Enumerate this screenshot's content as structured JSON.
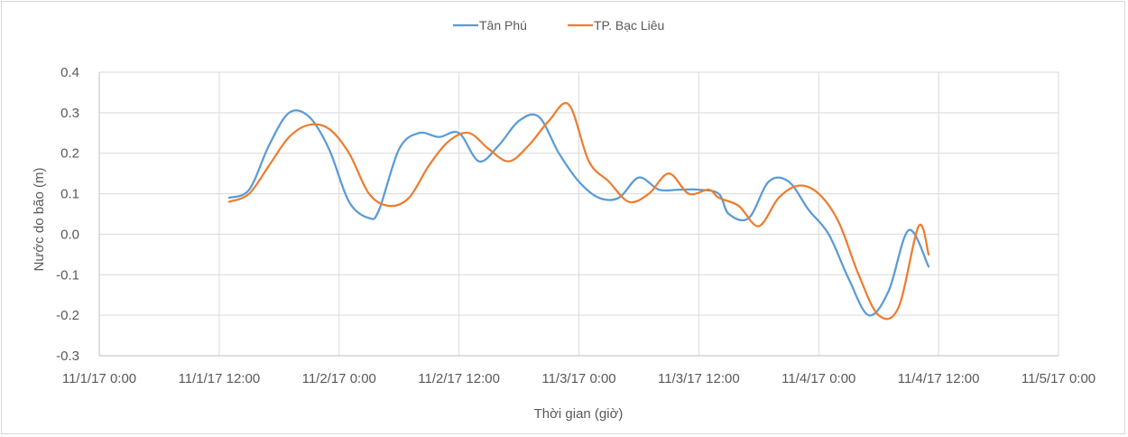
{
  "chart_data": {
    "type": "line",
    "title": "",
    "xlabel": "Thời gian (giờ)",
    "ylabel": "Nước do bão (m)",
    "x_unit": "datetime",
    "xlim": [
      "2017-11-01 00:00",
      "2017-11-05 00:00"
    ],
    "ylim": [
      -0.3,
      0.4
    ],
    "x_tick_labels": [
      "11/1/17 0:00",
      "11/1/17 12:00",
      "11/2/17 0:00",
      "11/2/17 12:00",
      "11/3/17 0:00",
      "11/3/17 12:00",
      "11/4/17 0:00",
      "11/4/17 12:00",
      "11/5/17 0:00"
    ],
    "y_tick_labels": [
      "0.4",
      "0.3",
      "0.2",
      "0.1",
      "0.0",
      "-0.1",
      "-0.2",
      "-0.3"
    ],
    "grid": true,
    "legend_position": "top-center",
    "series": [
      {
        "name": "Tân Phú",
        "color": "#5b9bd5",
        "x": [
          "2017-11-01 13:00",
          "2017-11-01 15:00",
          "2017-11-01 17:00",
          "2017-11-01 19:00",
          "2017-11-01 21:00",
          "2017-11-01 23:00",
          "2017-11-02 01:00",
          "2017-11-02 03:00",
          "2017-11-02 04:00",
          "2017-11-02 06:00",
          "2017-11-02 08:00",
          "2017-11-02 10:00",
          "2017-11-02 12:00",
          "2017-11-02 14:00",
          "2017-11-02 16:00",
          "2017-11-02 18:00",
          "2017-11-02 20:00",
          "2017-11-02 22:00",
          "2017-11-03 00:00",
          "2017-11-03 02:00",
          "2017-11-03 04:00",
          "2017-11-03 06:00",
          "2017-11-03 08:00",
          "2017-11-03 10:00",
          "2017-11-03 12:00",
          "2017-11-03 14:00",
          "2017-11-03 15:00",
          "2017-11-03 17:00",
          "2017-11-03 19:00",
          "2017-11-03 21:00",
          "2017-11-03 23:00",
          "2017-11-04 01:00",
          "2017-11-04 03:00",
          "2017-11-04 05:00",
          "2017-11-04 07:00",
          "2017-11-04 09:00",
          "2017-11-04 11:00"
        ],
        "values": [
          0.09,
          0.11,
          0.22,
          0.3,
          0.29,
          0.21,
          0.08,
          0.04,
          0.06,
          0.21,
          0.25,
          0.24,
          0.25,
          0.18,
          0.22,
          0.28,
          0.29,
          0.2,
          0.13,
          0.09,
          0.09,
          0.14,
          0.11,
          0.11,
          0.11,
          0.1,
          0.05,
          0.04,
          0.13,
          0.13,
          0.06,
          0.0,
          -0.11,
          -0.2,
          -0.14,
          0.01,
          -0.08
        ]
      },
      {
        "name": "TP. Bạc Liêu",
        "color": "#ed7d31",
        "x": [
          "2017-11-01 13:00",
          "2017-11-01 15:00",
          "2017-11-01 17:00",
          "2017-11-01 19:00",
          "2017-11-01 21:00",
          "2017-11-01 23:00",
          "2017-11-02 01:00",
          "2017-11-02 03:00",
          "2017-11-02 05:00",
          "2017-11-02 07:00",
          "2017-11-02 09:00",
          "2017-11-02 11:00",
          "2017-11-02 13:00",
          "2017-11-02 15:00",
          "2017-11-02 17:00",
          "2017-11-02 19:00",
          "2017-11-02 21:00",
          "2017-11-02 23:00",
          "2017-11-03 01:00",
          "2017-11-03 03:00",
          "2017-11-03 05:00",
          "2017-11-03 07:00",
          "2017-11-03 09:00",
          "2017-11-03 11:00",
          "2017-11-03 13:00",
          "2017-11-03 14:00",
          "2017-11-03 16:00",
          "2017-11-03 18:00",
          "2017-11-03 20:00",
          "2017-11-03 22:00",
          "2017-11-04 00:00",
          "2017-11-04 02:00",
          "2017-11-04 04:00",
          "2017-11-04 06:00",
          "2017-11-04 08:00",
          "2017-11-04 10:00",
          "2017-11-04 11:00"
        ],
        "values": [
          0.08,
          0.1,
          0.17,
          0.24,
          0.27,
          0.26,
          0.2,
          0.1,
          0.07,
          0.09,
          0.17,
          0.23,
          0.25,
          0.21,
          0.18,
          0.22,
          0.28,
          0.32,
          0.18,
          0.13,
          0.08,
          0.1,
          0.15,
          0.1,
          0.11,
          0.09,
          0.07,
          0.02,
          0.09,
          0.12,
          0.1,
          0.03,
          -0.1,
          -0.2,
          -0.18,
          0.02,
          -0.05
        ]
      }
    ]
  }
}
